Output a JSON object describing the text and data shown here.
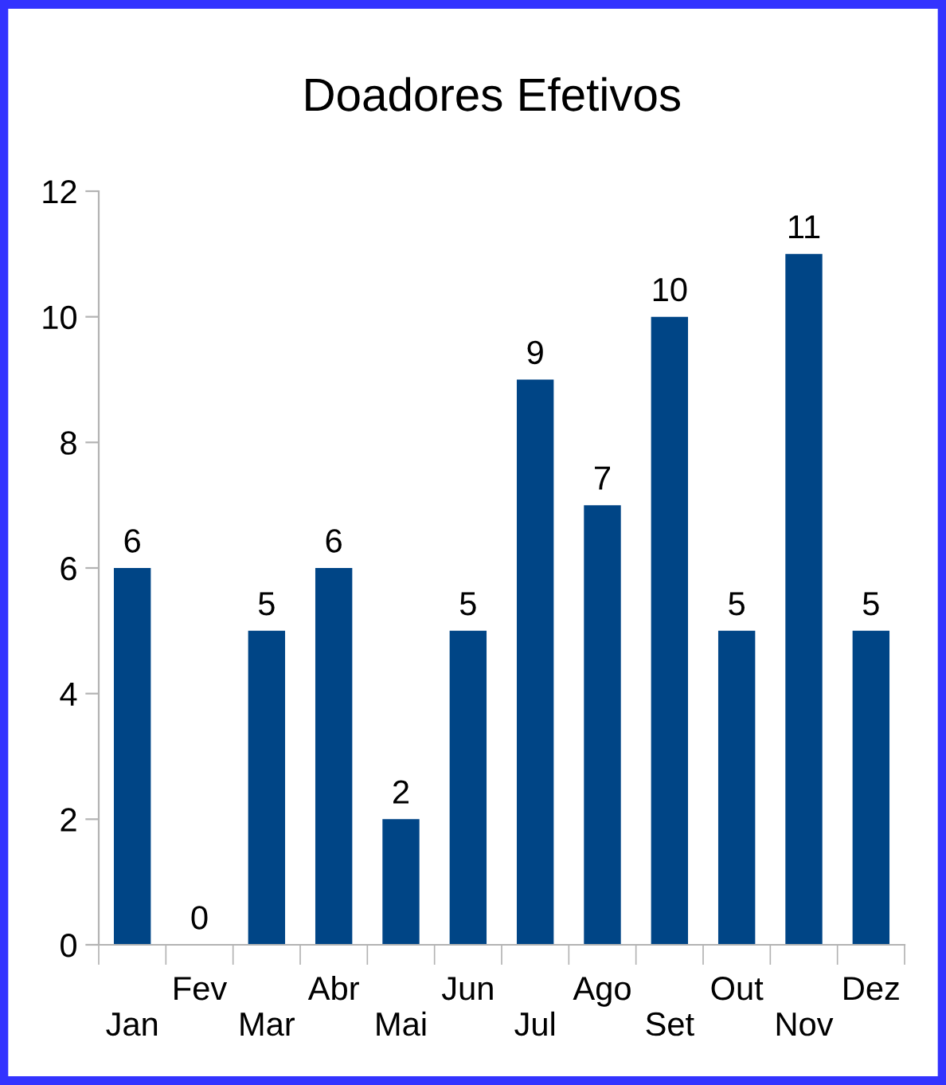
{
  "chart_data": {
    "type": "bar",
    "title": "Doadores Efetivos",
    "categories": [
      "Jan",
      "Fev",
      "Mar",
      "Abr",
      "Mai",
      "Jun",
      "Jul",
      "Ago",
      "Set",
      "Out",
      "Nov",
      "Dez"
    ],
    "values": [
      6,
      0,
      5,
      6,
      2,
      5,
      9,
      7,
      10,
      5,
      11,
      5
    ],
    "color": "#004586",
    "ylim": [
      0,
      12
    ],
    "yticks": [
      0,
      2,
      4,
      6,
      8,
      10,
      12
    ],
    "grid": false,
    "data_labels": true,
    "legend": false
  }
}
